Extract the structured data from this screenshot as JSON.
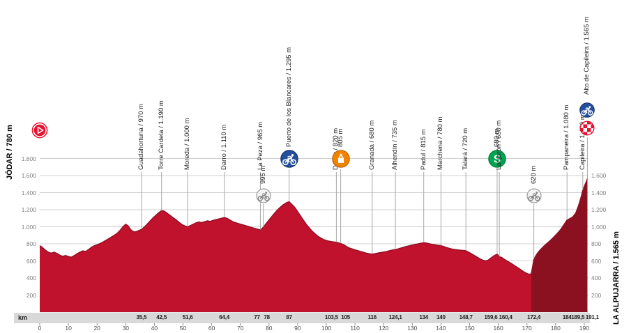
{
  "colors": {
    "profile": "#c0122c",
    "profile_dark": "#8c1120",
    "profile_edge": "#8f0e22",
    "grid": "#d0d0d0",
    "marker_line": "#a8a8a8",
    "icon_blue": "#234f9d",
    "icon_orange": "#f08300",
    "icon_green": "#00a551",
    "icon_red": "#e8112d"
  },
  "chart_data": {
    "type": "area",
    "x_unit": "km",
    "start_label": "JÓDAR / 780 m",
    "finish_label": "LA ALPUJARRA / 1.565 m",
    "xlim": [
      0,
      191.1
    ],
    "ylim": [
      0,
      1870
    ],
    "grid": true,
    "x_ticks": [
      0,
      10,
      20,
      30,
      40,
      50,
      60,
      70,
      80,
      90,
      100,
      110,
      120,
      130,
      140,
      150,
      160,
      170,
      180,
      190
    ],
    "y_ticks": [
      {
        "m": 200,
        "label": "200"
      },
      {
        "m": 400,
        "label": "400"
      },
      {
        "m": 600,
        "label": "600"
      },
      {
        "m": 800,
        "label": "800"
      },
      {
        "m": 1000,
        "label": "1.000"
      },
      {
        "m": 1200,
        "label": "1.200"
      },
      {
        "m": 1400,
        "label": "1.400"
      },
      {
        "m": 1600,
        "label": "1.600"
      },
      {
        "m": 1800,
        "label": "1.800"
      }
    ],
    "y_right_max": 1600,
    "dark_from_km": 171.5,
    "waypoints": [
      {
        "km": 35.5,
        "km_label": "35,5",
        "label": "Guadahortuna / 970 m",
        "elev": 970,
        "icon": null,
        "tier": 0
      },
      {
        "km": 42.5,
        "km_label": "42,5",
        "label": "Torre Cardela / 1.190 m",
        "elev": 1190,
        "icon": null,
        "tier": 0
      },
      {
        "km": 51.6,
        "km_label": "51,6",
        "label": "Moreda / 1.000 m",
        "elev": 1000,
        "icon": null,
        "tier": 0
      },
      {
        "km": 64.4,
        "km_label": "64,4",
        "label": "Darro / 1.110 m",
        "elev": 1110,
        "icon": null,
        "tier": 0
      },
      {
        "km": 77,
        "km_label": "77",
        "label": "La Peza / 965 m",
        "elev": 965,
        "icon": null,
        "tier": 0
      },
      {
        "km": 78,
        "km_label": "78",
        "label": "995 m",
        "elev": 995,
        "icon": "climb-gray",
        "tier": 2
      },
      {
        "km": 87,
        "km_label": "87",
        "label": "Puerto de los Blancares / 1.295 m",
        "elev": 1295,
        "icon": "climb-blue",
        "tier": 1
      },
      {
        "km": 103.5,
        "km_label": "103,5",
        "label": "Dúdar / 820 m",
        "elev": 820,
        "icon": null,
        "tier": 0
      },
      {
        "km": 105,
        "km_label": "105",
        "label": "805 m",
        "elev": 805,
        "icon": "feed-zone",
        "tier": 1
      },
      {
        "km": 116,
        "km_label": "116",
        "label": "Granada / 680 m",
        "elev": 680,
        "icon": null,
        "tier": 0
      },
      {
        "km": 124.1,
        "km_label": "124,1",
        "label": "Alhendín / 735 m",
        "elev": 735,
        "icon": null,
        "tier": 0
      },
      {
        "km": 134,
        "km_label": "134",
        "label": "Padul / 815 m",
        "elev": 815,
        "icon": null,
        "tier": 0
      },
      {
        "km": 140,
        "km_label": "140",
        "label": "Marchena / 780 m",
        "elev": 780,
        "icon": null,
        "tier": 0
      },
      {
        "km": 148.7,
        "km_label": "148,7",
        "label": "Talará / 720 m",
        "elev": 720,
        "icon": null,
        "tier": 0
      },
      {
        "km": 159.6,
        "km_label": "159,6",
        "label": "680 m",
        "elev": 680,
        "icon": "sprint",
        "tier": 1
      },
      {
        "km": 160.4,
        "km_label": "160,4",
        "label": "Lanjarón / 650 m",
        "elev": 650,
        "icon": null,
        "tier": 0
      },
      {
        "km": 172.4,
        "km_label": "172,4",
        "label": "620 m",
        "elev": 620,
        "icon": "climb-gray",
        "tier": 2
      },
      {
        "km": 184,
        "km_label": "184",
        "label": "Pampaneira / 1.080 m",
        "elev": 1080,
        "icon": null,
        "tier": 0
      },
      {
        "km": 189.5,
        "km_label": "189,5",
        "label": "Capileira / 1.430 m",
        "elev": 1430,
        "icon": null,
        "tier": 0
      },
      {
        "km": 191.1,
        "km_label": "191,1",
        "label": "Alto de Capileira / 1.565 m",
        "elev": 1565,
        "icon": "finish",
        "tier": 3
      }
    ],
    "profile": [
      [
        0,
        780
      ],
      [
        0.8,
        762
      ],
      [
        1.6,
        738
      ],
      [
        2.4,
        715
      ],
      [
        3.2,
        700
      ],
      [
        4,
        692
      ],
      [
        5,
        703
      ],
      [
        6,
        688
      ],
      [
        7,
        668
      ],
      [
        8,
        654
      ],
      [
        9,
        664
      ],
      [
        10,
        652
      ],
      [
        11,
        644
      ],
      [
        12,
        662
      ],
      [
        13,
        684
      ],
      [
        14,
        703
      ],
      [
        15,
        719
      ],
      [
        16,
        710
      ],
      [
        17,
        733
      ],
      [
        18,
        760
      ],
      [
        19,
        778
      ],
      [
        20,
        790
      ],
      [
        21,
        803
      ],
      [
        22,
        820
      ],
      [
        23,
        840
      ],
      [
        24,
        860
      ],
      [
        25,
        880
      ],
      [
        26,
        902
      ],
      [
        27,
        923
      ],
      [
        28,
        958
      ],
      [
        29,
        1000
      ],
      [
        30,
        1030
      ],
      [
        30.8,
        1014
      ],
      [
        31.6,
        972
      ],
      [
        32.4,
        948
      ],
      [
        33.2,
        940
      ],
      [
        34,
        948
      ],
      [
        35.5,
        970
      ],
      [
        36.5,
        998
      ],
      [
        37.5,
        1032
      ],
      [
        38.5,
        1068
      ],
      [
        39.5,
        1103
      ],
      [
        40.5,
        1135
      ],
      [
        41.5,
        1165
      ],
      [
        42.5,
        1190
      ],
      [
        43.5,
        1183
      ],
      [
        44.5,
        1159
      ],
      [
        45.5,
        1134
      ],
      [
        46.5,
        1108
      ],
      [
        47.5,
        1084
      ],
      [
        48.5,
        1056
      ],
      [
        49.5,
        1030
      ],
      [
        50.5,
        1012
      ],
      [
        51.6,
        1000
      ],
      [
        52.5,
        1014
      ],
      [
        53.5,
        1030
      ],
      [
        54.5,
        1046
      ],
      [
        55.5,
        1057
      ],
      [
        56.5,
        1049
      ],
      [
        57.5,
        1060
      ],
      [
        58.5,
        1070
      ],
      [
        59.5,
        1064
      ],
      [
        60.5,
        1075
      ],
      [
        61.5,
        1085
      ],
      [
        62.5,
        1093
      ],
      [
        63.5,
        1101
      ],
      [
        64.4,
        1110
      ],
      [
        65.5,
        1097
      ],
      [
        66.5,
        1077
      ],
      [
        67.5,
        1058
      ],
      [
        68.5,
        1047
      ],
      [
        69.5,
        1037
      ],
      [
        70.5,
        1027
      ],
      [
        71.5,
        1017
      ],
      [
        72.5,
        1007
      ],
      [
        73.5,
        997
      ],
      [
        74.5,
        987
      ],
      [
        75.5,
        977
      ],
      [
        76.5,
        968
      ],
      [
        77,
        965
      ],
      [
        78,
        995
      ],
      [
        79,
        1040
      ],
      [
        80,
        1082
      ],
      [
        81,
        1122
      ],
      [
        82,
        1162
      ],
      [
        83,
        1200
      ],
      [
        84,
        1232
      ],
      [
        85,
        1260
      ],
      [
        86,
        1281
      ],
      [
        87,
        1295
      ],
      [
        88,
        1261
      ],
      [
        89,
        1227
      ],
      [
        90,
        1178
      ],
      [
        91,
        1128
      ],
      [
        92,
        1078
      ],
      [
        93,
        1030
      ],
      [
        94,
        990
      ],
      [
        95,
        951
      ],
      [
        96,
        921
      ],
      [
        97,
        891
      ],
      [
        98,
        871
      ],
      [
        99,
        851
      ],
      [
        100,
        841
      ],
      [
        101,
        831
      ],
      [
        102,
        825
      ],
      [
        103.5,
        820
      ],
      [
        105,
        805
      ],
      [
        106,
        791
      ],
      [
        107,
        771
      ],
      [
        108,
        752
      ],
      [
        109,
        742
      ],
      [
        110,
        731
      ],
      [
        111,
        721
      ],
      [
        112,
        711
      ],
      [
        113,
        701
      ],
      [
        114,
        691
      ],
      [
        115,
        685
      ],
      [
        116,
        680
      ],
      [
        117,
        686
      ],
      [
        118,
        692
      ],
      [
        119,
        699
      ],
      [
        120,
        705
      ],
      [
        121,
        711
      ],
      [
        122,
        719
      ],
      [
        123,
        727
      ],
      [
        124.1,
        735
      ],
      [
        125,
        741
      ],
      [
        126,
        751
      ],
      [
        127,
        761
      ],
      [
        128,
        771
      ],
      [
        129,
        779
      ],
      [
        130,
        787
      ],
      [
        131,
        794
      ],
      [
        132,
        800
      ],
      [
        133,
        807
      ],
      [
        134,
        815
      ],
      [
        135,
        809
      ],
      [
        136,
        801
      ],
      [
        137,
        795
      ],
      [
        138,
        789
      ],
      [
        139,
        784
      ],
      [
        140,
        780
      ],
      [
        141,
        769
      ],
      [
        142,
        757
      ],
      [
        143,
        747
      ],
      [
        144,
        739
      ],
      [
        145,
        734
      ],
      [
        146,
        729
      ],
      [
        147,
        725
      ],
      [
        148.7,
        720
      ],
      [
        149.5,
        705
      ],
      [
        150.5,
        687
      ],
      [
        151.5,
        667
      ],
      [
        152.5,
        647
      ],
      [
        153.5,
        627
      ],
      [
        154.5,
        611
      ],
      [
        155.5,
        601
      ],
      [
        156.5,
        611
      ],
      [
        157.5,
        637
      ],
      [
        158.5,
        661
      ],
      [
        159.6,
        680
      ],
      [
        160.4,
        650
      ],
      [
        161.2,
        641
      ],
      [
        162,
        622
      ],
      [
        163,
        602
      ],
      [
        164,
        582
      ],
      [
        165,
        561
      ],
      [
        166,
        539
      ],
      [
        167,
        517
      ],
      [
        168,
        494
      ],
      [
        169,
        471
      ],
      [
        170,
        453
      ],
      [
        170.8,
        444
      ],
      [
        171.5,
        450
      ],
      [
        172.4,
        620
      ],
      [
        173.2,
        668
      ],
      [
        174,
        706
      ],
      [
        175,
        744
      ],
      [
        176,
        776
      ],
      [
        177,
        806
      ],
      [
        178,
        836
      ],
      [
        179,
        868
      ],
      [
        180,
        902
      ],
      [
        181,
        938
      ],
      [
        182,
        980
      ],
      [
        183,
        1030
      ],
      [
        184,
        1080
      ],
      [
        185,
        1097
      ],
      [
        186,
        1117
      ],
      [
        187,
        1160
      ],
      [
        188,
        1250
      ],
      [
        189,
        1363
      ],
      [
        189.5,
        1430
      ],
      [
        190.2,
        1490
      ],
      [
        190.7,
        1530
      ],
      [
        191.1,
        1565
      ]
    ]
  }
}
